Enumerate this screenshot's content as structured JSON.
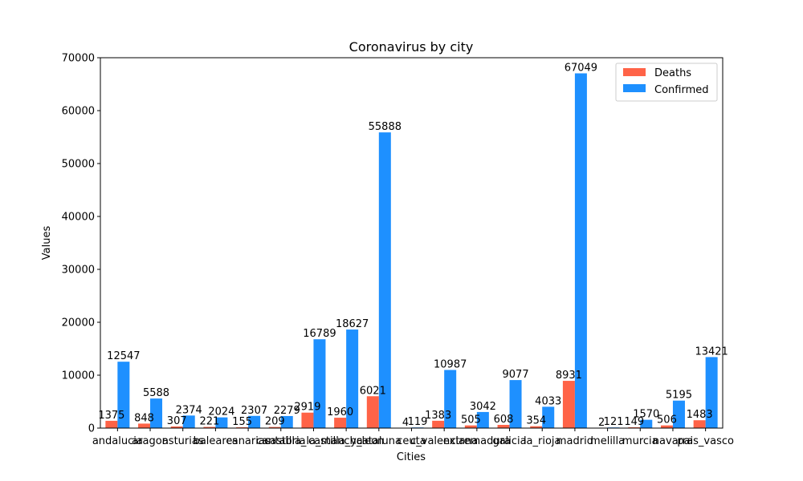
{
  "chart_data": {
    "type": "bar",
    "title": "Coronavirus by city",
    "xlabel": "Cities",
    "ylabel": "Values",
    "ylim": [
      0,
      70000
    ],
    "yticks": [
      0,
      10000,
      20000,
      30000,
      40000,
      50000,
      60000,
      70000
    ],
    "grid": false,
    "legend_position": "top-right",
    "categories": [
      "andalucia",
      "aragon",
      "asturias",
      "baleares",
      "canarias",
      "cantabria",
      "castilla_la_mancha",
      "castilla_y_leon",
      "cataluna",
      "ceuta",
      "c_valenciana",
      "extremadura",
      "galicia",
      "la_rioja",
      "madrid",
      "melilla",
      "murcia",
      "navarra",
      "pais_vasco"
    ],
    "series": [
      {
        "name": "Deaths",
        "color": "#ff6347",
        "values": [
          1375,
          848,
          307,
          221,
          155,
          209,
          2919,
          1960,
          6021,
          4,
          1383,
          505,
          608,
          354,
          8931,
          2,
          149,
          506,
          1483
        ]
      },
      {
        "name": "Confirmed",
        "color": "#1e90ff",
        "values": [
          12547,
          5588,
          2374,
          2024,
          2307,
          2279,
          16789,
          18627,
          55888,
          119,
          10987,
          3042,
          9077,
          4033,
          67049,
          121,
          1570,
          5195,
          13421
        ]
      }
    ]
  }
}
